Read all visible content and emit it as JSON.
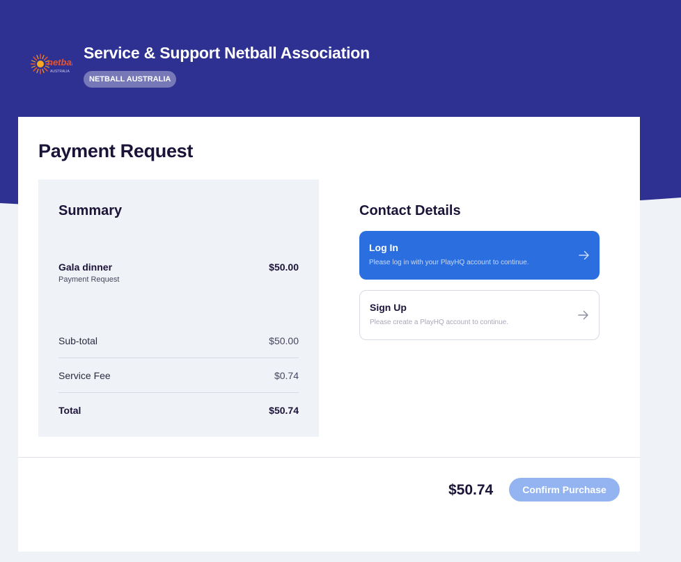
{
  "header": {
    "org_name": "Service & Support Netball Association",
    "badge": "NETBALL AUSTRALIA",
    "logo_text": "netball",
    "logo_subtext": "AUSTRALIA"
  },
  "page": {
    "title": "Payment Request"
  },
  "summary": {
    "heading": "Summary",
    "item": {
      "name": "Gala dinner",
      "type": "Payment Request",
      "price": "$50.00"
    },
    "rows": [
      {
        "label": "Sub-total",
        "value": "$50.00"
      },
      {
        "label": "Service Fee",
        "value": "$0.74"
      },
      {
        "label": "Total",
        "value": "$50.74"
      }
    ]
  },
  "contact": {
    "heading": "Contact Details",
    "login": {
      "title": "Log In",
      "description": "Please log in with your PlayHQ account to continue."
    },
    "signup": {
      "title": "Sign Up",
      "description": "Please create a PlayHQ account to continue."
    }
  },
  "footer": {
    "total": "$50.74",
    "confirm_label": "Confirm Purchase"
  },
  "colors": {
    "header_bg": "#2e3192",
    "primary": "#2a6ee0",
    "confirm_disabled": "#93b4f0",
    "page_bg": "#eff2f7"
  },
  "icons": {
    "login_arrow": "arrow-right-icon",
    "signup_arrow": "arrow-right-icon",
    "logo": "netball-logo"
  }
}
